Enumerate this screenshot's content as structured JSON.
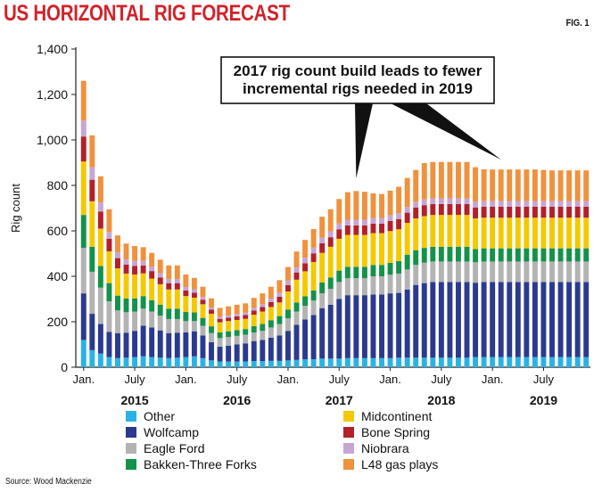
{
  "header": {
    "title": "US HORIZONTAL RIG FORECAST",
    "fig_label": "FIG. 1"
  },
  "source": "Source: Wood Mackenzie",
  "chart_data": {
    "type": "bar",
    "stacked": true,
    "title": "US HORIZONTAL RIG FORECAST",
    "xlabel": "",
    "ylabel": "Rig count",
    "ylim": [
      0,
      1400
    ],
    "y_ticks": [
      0,
      200,
      400,
      600,
      800,
      1000,
      1200,
      1400
    ],
    "y_tick_labels": [
      "0",
      "200",
      "400",
      "600",
      "800",
      "1,000",
      "1,200",
      "1,400"
    ],
    "grid": false,
    "legend_position": "bottom",
    "x_tick_labels": [
      {
        "label": "Jan.",
        "index": 0
      },
      {
        "label": "July",
        "index": 6
      },
      {
        "label": "Jan.",
        "index": 12
      },
      {
        "label": "July",
        "index": 18
      },
      {
        "label": "Jan.",
        "index": 24
      },
      {
        "label": "July",
        "index": 30
      },
      {
        "label": "Jan.",
        "index": 36
      },
      {
        "label": "July",
        "index": 42
      },
      {
        "label": "Jan.",
        "index": 48
      },
      {
        "label": "July",
        "index": 54
      }
    ],
    "year_labels": [
      {
        "label": "2015",
        "index": 6
      },
      {
        "label": "2016",
        "index": 18
      },
      {
        "label": "2017",
        "index": 30
      },
      {
        "label": "2018",
        "index": 42
      },
      {
        "label": "2019",
        "index": 54
      }
    ],
    "annotation": {
      "text_lines": [
        "2017 rig count build leads to fewer",
        "incremental rigs needed in 2019"
      ],
      "target_indices": [
        32,
        49
      ]
    },
    "categories": [
      "Jan. 2015",
      "Feb. 2015",
      "Mar. 2015",
      "Apr. 2015",
      "May 2015",
      "Jun. 2015",
      "Jul. 2015",
      "Aug. 2015",
      "Sep. 2015",
      "Oct. 2015",
      "Nov. 2015",
      "Dec. 2015",
      "Jan. 2016",
      "Feb. 2016",
      "Mar. 2016",
      "Apr. 2016",
      "May 2016",
      "Jun. 2016",
      "Jul. 2016",
      "Aug. 2016",
      "Sep. 2016",
      "Oct. 2016",
      "Nov. 2016",
      "Dec. 2016",
      "Jan. 2017",
      "Feb. 2017",
      "Mar. 2017",
      "Apr. 2017",
      "May 2017",
      "Jun. 2017",
      "Jul. 2017",
      "Aug. 2017",
      "Sep. 2017",
      "Oct. 2017",
      "Nov. 2017",
      "Dec. 2017",
      "Jan. 2018",
      "Feb. 2018",
      "Mar. 2018",
      "Apr. 2018",
      "May 2018",
      "Jun. 2018",
      "Jul. 2018",
      "Aug. 2018",
      "Sep. 2018",
      "Oct. 2018",
      "Nov. 2018",
      "Dec. 2018",
      "Jan. 2019",
      "Feb. 2019",
      "Mar. 2019",
      "Apr. 2019",
      "May 2019",
      "Jun. 2019",
      "Jul. 2019",
      "Aug. 2019",
      "Sep. 2019",
      "Oct. 2019",
      "Nov. 2019",
      "Dec. 2019"
    ],
    "series": [
      {
        "name": "Other",
        "color": "#2ab2e6",
        "values": [
          120,
          75,
          60,
          45,
          40,
          42,
          45,
          48,
          45,
          42,
          40,
          42,
          45,
          48,
          40,
          30,
          25,
          25,
          25,
          25,
          27,
          27,
          28,
          28,
          30,
          32,
          35,
          35,
          38,
          38,
          38,
          40,
          40,
          40,
          40,
          40,
          40,
          42,
          42,
          42,
          42,
          42,
          42,
          42,
          42,
          42,
          45,
          45,
          45,
          45,
          45,
          45,
          45,
          45,
          45,
          45,
          45,
          45,
          45,
          45
        ]
      },
      {
        "name": "Wolfcamp",
        "color": "#2b3a8f",
        "values": [
          205,
          160,
          130,
          110,
          110,
          110,
          115,
          135,
          130,
          120,
          110,
          110,
          108,
          110,
          100,
          80,
          65,
          70,
          75,
          80,
          88,
          93,
          102,
          112,
          130,
          155,
          175,
          195,
          222,
          237,
          262,
          277,
          277,
          277,
          280,
          280,
          285,
          285,
          300,
          320,
          328,
          333,
          333,
          333,
          333,
          333,
          327,
          330,
          330,
          330,
          330,
          330,
          330,
          330,
          330,
          330,
          330,
          330,
          330,
          330
        ]
      },
      {
        "name": "Eagle Ford",
        "color": "#b3b3b3",
        "values": [
          200,
          185,
          160,
          135,
          100,
          90,
          85,
          75,
          70,
          65,
          62,
          60,
          50,
          45,
          42,
          40,
          38,
          38,
          38,
          38,
          38,
          40,
          45,
          50,
          55,
          58,
          60,
          63,
          65,
          70,
          75,
          75,
          75,
          75,
          80,
          80,
          82,
          85,
          88,
          88,
          90,
          90,
          90,
          90,
          90,
          90,
          90,
          90,
          90,
          90,
          90,
          90,
          90,
          90,
          90,
          90,
          90,
          90,
          90,
          90
        ]
      },
      {
        "name": "Bakken-Three Forks",
        "color": "#14924a",
        "values": [
          145,
          110,
          95,
          80,
          65,
          60,
          58,
          55,
          50,
          48,
          45,
          45,
          40,
          38,
          35,
          30,
          25,
          25,
          25,
          25,
          28,
          30,
          32,
          35,
          38,
          40,
          42,
          45,
          48,
          50,
          50,
          50,
          50,
          50,
          50,
          50,
          52,
          55,
          65,
          65,
          65,
          65,
          65,
          65,
          65,
          65,
          58,
          58,
          58,
          58,
          58,
          58,
          58,
          58,
          58,
          58,
          58,
          58,
          58,
          58
        ]
      },
      {
        "name": "Midcontinent",
        "color": "#f4c900",
        "values": [
          235,
          200,
          165,
          140,
          120,
          110,
          105,
          100,
          95,
          90,
          85,
          85,
          70,
          65,
          60,
          55,
          45,
          45,
          45,
          45,
          50,
          55,
          58,
          60,
          80,
          100,
          110,
          125,
          130,
          135,
          140,
          140,
          140,
          140,
          140,
          140,
          140,
          140,
          140,
          140,
          140,
          140,
          140,
          140,
          140,
          140,
          135,
          135,
          135,
          135,
          135,
          135,
          135,
          135,
          135,
          135,
          135,
          135,
          135,
          135
        ]
      },
      {
        "name": "Bone Spring",
        "color": "#b3202a",
        "values": [
          110,
          95,
          75,
          55,
          45,
          40,
          38,
          35,
          33,
          30,
          28,
          28,
          25,
          22,
          20,
          18,
          15,
          15,
          16,
          17,
          18,
          20,
          22,
          25,
          28,
          32,
          35,
          38,
          42,
          42,
          42,
          42,
          42,
          42,
          42,
          42,
          45,
          45,
          45,
          48,
          48,
          48,
          48,
          48,
          48,
          48,
          48,
          48,
          48,
          48,
          48,
          48,
          48,
          48,
          48,
          48,
          48,
          48,
          48,
          48
        ]
      },
      {
        "name": "Niobrara",
        "color": "#c7a6d6",
        "values": [
          70,
          55,
          40,
          30,
          25,
          22,
          22,
          20,
          20,
          18,
          18,
          18,
          15,
          15,
          12,
          10,
          8,
          10,
          10,
          10,
          12,
          12,
          15,
          18,
          20,
          22,
          25,
          25,
          25,
          25,
          25,
          25,
          25,
          25,
          25,
          25,
          25,
          25,
          25,
          25,
          25,
          25,
          25,
          25,
          25,
          25,
          25,
          25,
          25,
          25,
          25,
          25,
          25,
          25,
          25,
          25,
          25,
          25,
          25,
          25
        ]
      },
      {
        "name": "L48 gas plays",
        "color": "#f0913d",
        "values": [
          175,
          140,
          115,
          100,
          75,
          70,
          65,
          60,
          60,
          60,
          60,
          60,
          55,
          50,
          45,
          40,
          40,
          40,
          41,
          41,
          44,
          48,
          52,
          55,
          60,
          70,
          78,
          82,
          92,
          98,
          108,
          121,
          126,
          123,
          108,
          105,
          108,
          117,
          128,
          140,
          160,
          160,
          160,
          160,
          160,
          160,
          152,
          140,
          139,
          139,
          139,
          139,
          139,
          139,
          137,
          135,
          135,
          135,
          135,
          135
        ]
      }
    ]
  },
  "legend": {
    "items": [
      {
        "name": "Other",
        "color": "#2ab2e6"
      },
      {
        "name": "Wolfcamp",
        "color": "#2b3a8f"
      },
      {
        "name": "Eagle Ford",
        "color": "#b3b3b3"
      },
      {
        "name": "Bakken-Three Forks",
        "color": "#14924a"
      },
      {
        "name": "Midcontinent",
        "color": "#f4c900"
      },
      {
        "name": "Bone Spring",
        "color": "#b3202a"
      },
      {
        "name": "Niobrara",
        "color": "#c7a6d6"
      },
      {
        "name": "L48 gas plays",
        "color": "#f0913d"
      }
    ]
  }
}
